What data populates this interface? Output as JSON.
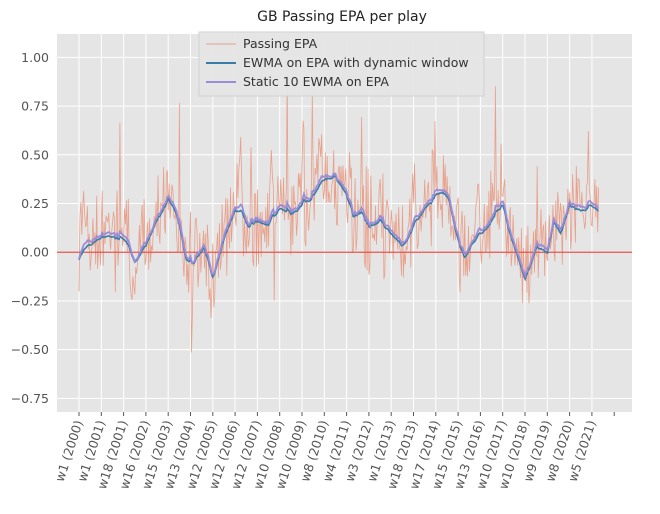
{
  "chart_data": {
    "type": "line",
    "title": "GB Passing EPA per play",
    "xlabel": "",
    "ylabel": "",
    "ylim": [
      -0.82,
      1.12
    ],
    "yticks": [
      1.0,
      0.75,
      0.5,
      0.25,
      0.0,
      -0.25,
      -0.5,
      -0.75
    ],
    "ytick_labels": [
      "1.00",
      "0.75",
      "0.50",
      "0.25",
      "0.00",
      "−0.25",
      "−0.50",
      "−0.75"
    ],
    "grid": true,
    "legend_position": "top",
    "reference_line": {
      "y": 0,
      "color": "#e8534a"
    },
    "x_tick_labels": [
      "w1 (2000)",
      "w1 (2001)",
      "w18 (2001)",
      "w16 (2002)",
      "w15 (2003)",
      "w13 (2004)",
      "w12 (2005)",
      "w12 (2006)",
      "w12 (2007)",
      "w10 (2008)",
      "w10 (2009)",
      "w8 (2010)",
      "w4 (2011)",
      "w3 (2012)",
      "w1 (2013)",
      "w18 (2013)",
      "w17 (2014)",
      "w15 (2015)",
      "w13 (2016)",
      "w10 (2017)",
      "w10 (2018)",
      "w9 (2019)",
      "w8 (2020)",
      "w5 (2021)"
    ],
    "series": [
      {
        "name": "Passing EPA",
        "color": "#e8a08a"
      },
      {
        "name": "EWMA on EPA with dynamic window",
        "color": "#3a7ca5"
      },
      {
        "name": "Static 10 EWMA on EPA",
        "color": "#9b8cd8"
      }
    ],
    "smoothed_anchor": {
      "t": [
        0,
        0.3,
        0.6,
        1.0,
        1.5,
        2.0,
        2.5,
        3.0,
        3.4,
        3.8,
        4.0,
        4.4,
        4.8,
        5.2,
        5.6,
        6.0,
        6.5,
        7.0,
        7.3,
        7.6,
        8.0,
        8.5,
        9.0,
        9.5,
        10.0,
        10.5,
        11.0,
        11.5,
        12.0,
        12.3,
        12.6,
        13.0,
        13.5,
        14.0,
        14.5,
        15.0,
        15.5,
        16.0,
        16.3,
        16.6,
        17.0,
        17.3,
        17.6,
        18.0,
        18.5,
        19.0,
        19.3,
        19.6,
        20.0,
        20.5,
        21.0,
        21.3,
        21.6,
        22.0,
        22.5,
        23.0,
        23.3
      ],
      "y": [
        0.02,
        0.03,
        0.06,
        0.1,
        0.09,
        0.07,
        -0.03,
        0.05,
        0.18,
        0.25,
        0.3,
        0.2,
        -0.05,
        -0.03,
        0.05,
        -0.12,
        0.1,
        0.25,
        0.2,
        0.14,
        0.18,
        0.16,
        0.24,
        0.2,
        0.25,
        0.3,
        0.38,
        0.42,
        0.3,
        0.18,
        0.22,
        0.14,
        0.18,
        0.1,
        0.04,
        0.15,
        0.25,
        0.3,
        0.33,
        0.28,
        0.05,
        -0.04,
        0.06,
        0.1,
        0.18,
        0.25,
        0.1,
        0.0,
        -0.15,
        0.05,
        0.0,
        0.2,
        0.1,
        0.28,
        0.22,
        0.25,
        0.22
      ]
    }
  }
}
